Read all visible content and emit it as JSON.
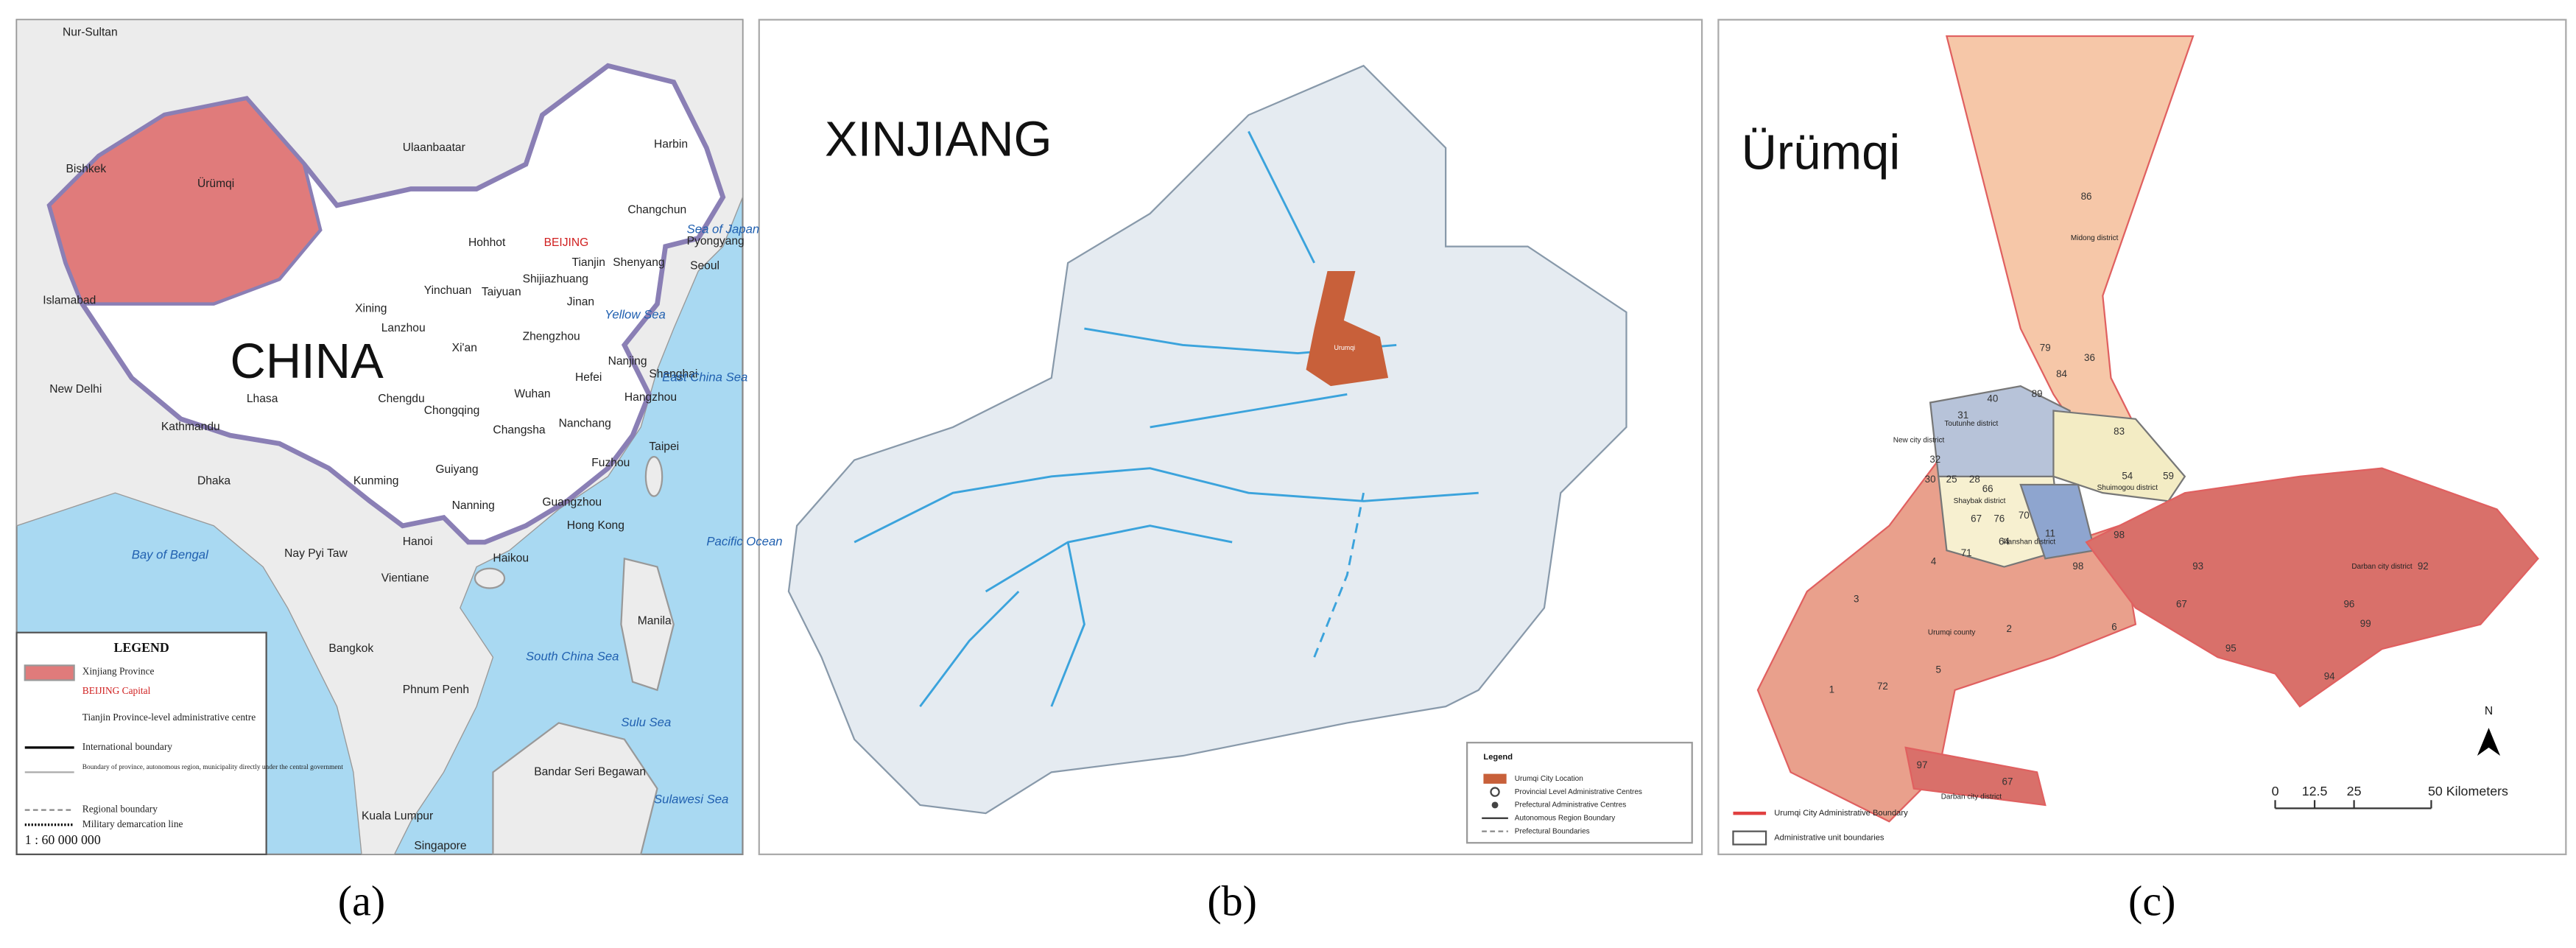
{
  "panels": [
    {
      "caption": "(a)",
      "title": "CHINA",
      "labels": [
        "Nur-Sultan",
        "Bishkek",
        "Ürümqi",
        "Islamabad",
        "New Delhi",
        "Kathmandu",
        "Lhasa",
        "Dhaka",
        "Ulaanbaatar",
        "Harbin",
        "Changchun",
        "Shenyang",
        "Pyongyang",
        "Seoul",
        "Hohhot",
        "BEIJING",
        "Tianjin",
        "Shijiazhuang",
        "Yinchuan",
        "Taiyuan",
        "Jinan",
        "Xining",
        "Lanzhou",
        "Zhengzhou",
        "Xi'an",
        "Nanjing",
        "Shanghai",
        "Hefei",
        "Wuhan",
        "Hangzhou",
        "Chengdu",
        "Chongqing",
        "Changsha",
        "Nanchang",
        "Fuzhou",
        "Taipei",
        "Guiyang",
        "Kunming",
        "Nanning",
        "Guangzhou",
        "Hong Kong",
        "Hanoi",
        "Haikou",
        "Nay Pyi Taw",
        "Vientiane",
        "Bangkok",
        "Phnum Penh",
        "Manila",
        "Kuala Lumpur",
        "Singapore",
        "Bandar Seri Begawan",
        "Bay of Bengal",
        "South China Sea",
        "Yellow Sea",
        "East China Sea",
        "Sea of Japan",
        "Pacific Ocean",
        "Sulu Sea",
        "Sulawesi Sea"
      ],
      "legend": {
        "title": "LEGEND",
        "items": [
          "Xinjiang Province",
          "BEIJING Capital",
          "Tianjin Province-level administrative centre",
          "International boundary",
          "Boundary of province, autonomous region, municipality directly under the central government",
          "Regional boundary",
          "Military demarcation line"
        ],
        "scale": "1 : 60 000 000"
      }
    },
    {
      "caption": "(b)",
      "title": "XINJIANG",
      "labels": [
        "Urumqi"
      ],
      "legend": {
        "title": "Legend",
        "items": [
          "Urumqi City Location",
          "Provincial Level Administrative Centres",
          "Prefectural Administrative Centres",
          "Autonomous Region Boundary",
          "Prefectural Boundaries"
        ]
      }
    },
    {
      "caption": "(c)",
      "title": "Ürümqi",
      "labels": [
        "Midong district",
        "Toutunhe district",
        "New city district",
        "Shuimogou district",
        "Shaybak district",
        "Tianshan district",
        "Urumqi county",
        "Darban city district",
        "Darban city district"
      ],
      "unit_numbers": [
        "86",
        "79",
        "36",
        "84",
        "89",
        "40",
        "83",
        "31",
        "32",
        "30",
        "25",
        "28",
        "54",
        "59",
        "66",
        "67",
        "76",
        "70",
        "71",
        "64",
        "11",
        "98",
        "93",
        "67",
        "92",
        "96",
        "99",
        "94",
        "95",
        "6",
        "2",
        "3",
        "4",
        "1",
        "72",
        "5",
        "97",
        "67",
        "98"
      ],
      "legend": {
        "items": [
          "Urumqi City Administrative Boundary",
          "Administrative unit boundaries"
        ]
      },
      "scale": [
        "0",
        "12.5",
        "25",
        "50 Kilometers"
      ],
      "north": "N"
    }
  ]
}
